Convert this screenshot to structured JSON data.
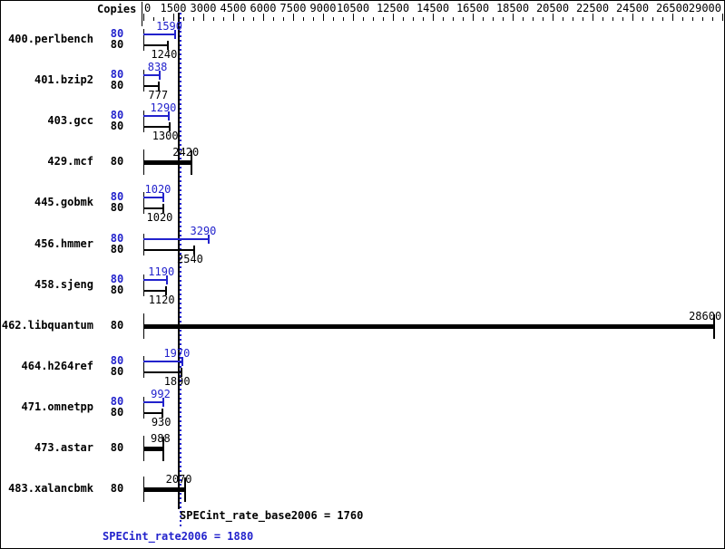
{
  "header": {
    "copies_label": "Copies"
  },
  "summary": {
    "base_text": "SPECint_rate_base2006 = 1760",
    "peak_text": "SPECint_rate2006 = 1880"
  },
  "colors": {
    "peak_blue": "#2222cc",
    "base_black": "#000000"
  },
  "axis": {
    "min": 0,
    "max": 29000,
    "minor_step": 500,
    "major_ticks": [
      0,
      1500,
      3000,
      4500,
      6000,
      7500,
      9000,
      10500,
      12500,
      14500,
      16500,
      18500,
      20500,
      22500,
      24500,
      26500,
      29000
    ]
  },
  "chart_data": {
    "type": "bar",
    "orientation": "horizontal",
    "title": "",
    "xlabel": "",
    "ylabel": "Copies",
    "xlim": [
      0,
      29000
    ],
    "x_tick_labels": [
      0,
      1500,
      3000,
      4500,
      6000,
      7500,
      9000,
      10500,
      12500,
      14500,
      16500,
      18500,
      20500,
      22500,
      24500,
      26500,
      29000
    ],
    "x_minor_step": 500,
    "grid": false,
    "benchmarks": [
      {
        "name": "400.perlbench",
        "copies": 80,
        "peak": 1590,
        "base": 1240,
        "merged": false
      },
      {
        "name": "401.bzip2",
        "copies": 80,
        "peak": 838,
        "base": 777,
        "merged": false
      },
      {
        "name": "403.gcc",
        "copies": 80,
        "peak": 1290,
        "base": 1300,
        "merged": false
      },
      {
        "name": "429.mcf",
        "copies": 80,
        "peak": 2420,
        "base": 2420,
        "merged": true
      },
      {
        "name": "445.gobmk",
        "copies": 80,
        "peak": 1020,
        "base": 1020,
        "merged": false
      },
      {
        "name": "456.hmmer",
        "copies": 80,
        "peak": 3290,
        "base": 2540,
        "merged": false
      },
      {
        "name": "458.sjeng",
        "copies": 80,
        "peak": 1190,
        "base": 1120,
        "merged": false
      },
      {
        "name": "462.libquantum",
        "copies": 80,
        "peak": 28600,
        "base": 28600,
        "merged": true
      },
      {
        "name": "464.h264ref",
        "copies": 80,
        "peak": 1970,
        "base": 1890,
        "merged": false
      },
      {
        "name": "471.omnetpp",
        "copies": 80,
        "peak": 992,
        "base": 930,
        "merged": false
      },
      {
        "name": "473.astar",
        "copies": 80,
        "peak": 988,
        "base": 988,
        "merged": true
      },
      {
        "name": "483.xalancbmk",
        "copies": 80,
        "peak": 2070,
        "base": 2070,
        "merged": true
      }
    ],
    "reference_lines": [
      {
        "label": "SPECint_rate_base2006",
        "value": 1760,
        "color": "#000000",
        "style": "solid"
      },
      {
        "label": "SPECint_rate2006",
        "value": 1880,
        "color": "#2222cc",
        "style": "dotted"
      }
    ]
  }
}
